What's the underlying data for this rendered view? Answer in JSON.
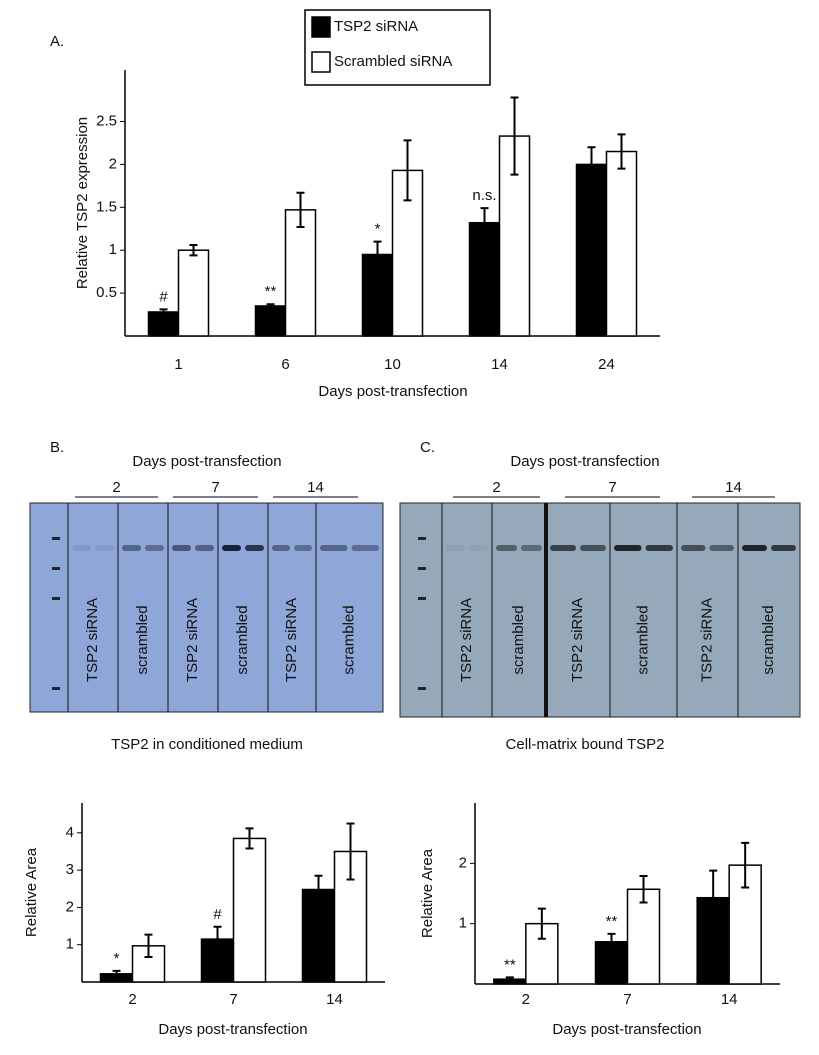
{
  "chart_data": [
    {
      "type": "bar",
      "panel": "A.",
      "categories": [
        "1",
        "6",
        "10",
        "14",
        "24"
      ],
      "series": [
        {
          "name": "TSP2 siRNA",
          "color": "#000000",
          "values": [
            0.28,
            0.35,
            0.95,
            1.32,
            2.0
          ],
          "errors": [
            0.03,
            0.02,
            0.15,
            0.17,
            0.2
          ]
        },
        {
          "name": "Scrambled siRNA",
          "color": "#ffffff",
          "values": [
            1.0,
            1.47,
            1.93,
            2.33,
            2.15
          ],
          "errors": [
            0.06,
            0.2,
            0.35,
            0.45,
            0.2
          ]
        }
      ],
      "annotations": [
        "#",
        "**",
        "*",
        "n.s.",
        null
      ],
      "ylim": [
        0,
        3.1
      ],
      "yticks": [
        0.5,
        1.0,
        1.5,
        2.0,
        2.5
      ],
      "y_label": "Relative TSP2 expression",
      "x_label": "Days post-transfection"
    },
    {
      "type": "bar",
      "categories": [
        "2",
        "7",
        "14"
      ],
      "series": [
        {
          "color": "#000000",
          "values": [
            0.22,
            1.15,
            2.48
          ],
          "errors": [
            0.08,
            0.33,
            0.37
          ]
        },
        {
          "color": "#ffffff",
          "values": [
            0.97,
            3.85,
            3.5
          ],
          "errors": [
            0.3,
            0.27,
            0.75
          ]
        }
      ],
      "annotations": [
        "*",
        "#",
        null
      ],
      "ylim": [
        0,
        4.8
      ],
      "yticks": [
        1,
        2,
        3,
        4
      ],
      "y_label": "Relative Area",
      "x_label": "Days post-transfection"
    },
    {
      "type": "bar",
      "categories": [
        "2",
        "7",
        "14"
      ],
      "series": [
        {
          "color": "#000000",
          "values": [
            0.08,
            0.7,
            1.43
          ],
          "errors": [
            0.03,
            0.13,
            0.45
          ]
        },
        {
          "color": "#ffffff",
          "values": [
            1.0,
            1.57,
            1.97
          ],
          "errors": [
            0.25,
            0.22,
            0.37
          ]
        }
      ],
      "annotations": [
        "**",
        "**",
        null
      ],
      "ylim": [
        0,
        3.0
      ],
      "yticks": [
        1,
        2
      ],
      "y_label": "Relative Area",
      "x_label": "Days post-transfection"
    }
  ],
  "blots": [
    {
      "panel": "B.",
      "header": "Days post-transfection",
      "groups": [
        "2",
        "7",
        "14"
      ],
      "lanes": [
        "TSP2 siRNA",
        "scrambled",
        "TSP2 siRNA",
        "scrambled",
        "TSP2 siRNA",
        "scrambled"
      ],
      "caption": "TSP2 in conditioned medium"
    },
    {
      "panel": "C.",
      "header": "Days post-transfection",
      "groups": [
        "2",
        "7",
        "14"
      ],
      "lanes": [
        "TSP2 siRNA",
        "scrambled",
        "TSP2 siRNA",
        "scrambled",
        "TSP2 siRNA",
        "scrambled"
      ],
      "caption": "Cell-matrix bound TSP2"
    }
  ]
}
